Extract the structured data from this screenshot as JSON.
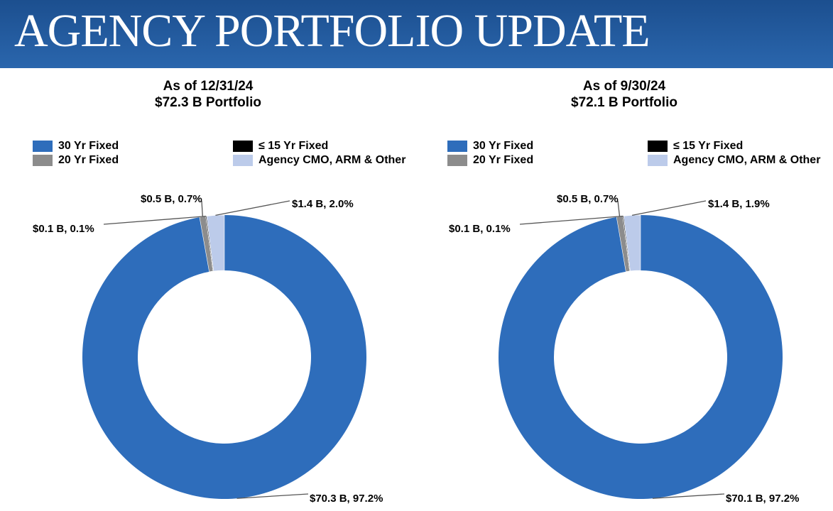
{
  "header": {
    "title": "AGENCY PORTFOLIO UPDATE"
  },
  "colors": {
    "header_bg": "#2360a6",
    "series": [
      "#2e6dbb",
      "#8c8c8c",
      "#000000",
      "#bccbea"
    ]
  },
  "legend": {
    "items": [
      "30 Yr Fixed",
      "20 Yr Fixed",
      "≤ 15 Yr Fixed",
      "Agency CMO, ARM & Other"
    ]
  },
  "chart_data": [
    {
      "type": "pie",
      "title": "As of 12/31/24",
      "subtitle": "$72.3 B Portfolio",
      "categories": [
        "30 Yr Fixed",
        "20 Yr Fixed",
        "≤ 15 Yr Fixed",
        "Agency CMO, ARM & Other"
      ],
      "values": [
        97.2,
        0.7,
        0.1,
        2.0
      ],
      "data_labels": [
        "$70.3 B, 97.2%",
        "$0.5 B, 0.7%",
        "$0.1 B, 0.1%",
        "$1.4 B, 2.0%"
      ],
      "legend_position": "top",
      "donut": true
    },
    {
      "type": "pie",
      "title": "As of 9/30/24",
      "subtitle": "$72.1 B Portfolio",
      "categories": [
        "30 Yr Fixed",
        "20 Yr Fixed",
        "≤ 15 Yr Fixed",
        "Agency CMO, ARM & Other"
      ],
      "values": [
        97.2,
        0.7,
        0.1,
        1.9
      ],
      "data_labels": [
        "$70.1 B, 97.2%",
        "$0.5 B, 0.7%",
        "$0.1 B, 0.1%",
        "$1.4 B, 1.9%"
      ],
      "legend_position": "top",
      "donut": true
    }
  ]
}
